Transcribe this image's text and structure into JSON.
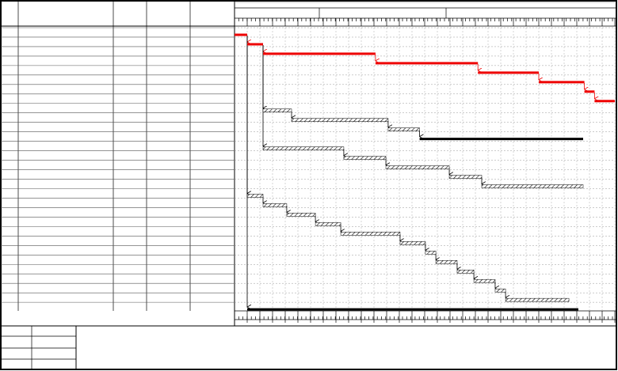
{
  "gantt": {
    "xlim": [
      0,
      150
    ],
    "tasks": [
      {
        "row": 0,
        "start": 0,
        "end": 5,
        "style": "critical"
      },
      {
        "row": 1,
        "start": 5,
        "end": 11.25,
        "style": "critical"
      },
      {
        "row": 2,
        "start": 11.25,
        "end": 55.6,
        "style": "critical"
      },
      {
        "row": 3,
        "start": 55.6,
        "end": 96,
        "style": "critical"
      },
      {
        "row": 4,
        "start": 96,
        "end": 120,
        "style": "critical"
      },
      {
        "row": 5,
        "start": 120,
        "end": 138,
        "style": "critical"
      },
      {
        "row": 6,
        "start": 138,
        "end": 142,
        "style": "critical"
      },
      {
        "row": 7,
        "start": 142,
        "end": 150,
        "style": "critical"
      },
      {
        "row": 8,
        "start": 11.25,
        "end": 22.5,
        "style": "normal"
      },
      {
        "row": 9,
        "start": 22.5,
        "end": 60.6,
        "style": "normal"
      },
      {
        "row": 10,
        "start": 60.6,
        "end": 73,
        "style": "normal"
      },
      {
        "row": 11,
        "start": 73,
        "end": 137.5,
        "style": "summary"
      },
      {
        "row": 12,
        "start": 11.25,
        "end": 43.1,
        "style": "normal"
      },
      {
        "row": 13,
        "start": 43.1,
        "end": 59.7,
        "style": "normal"
      },
      {
        "row": 14,
        "start": 59.7,
        "end": 84.7,
        "style": "normal"
      },
      {
        "row": 15,
        "start": 84.7,
        "end": 97.5,
        "style": "normal"
      },
      {
        "row": 16,
        "start": 97.5,
        "end": 137.5,
        "style": "normal"
      },
      {
        "row": 17,
        "start": 5,
        "end": 11.25,
        "style": "normal"
      },
      {
        "row": 18,
        "start": 11.25,
        "end": 20.6,
        "style": "normal"
      },
      {
        "row": 19,
        "start": 20.6,
        "end": 31.9,
        "style": "normal"
      },
      {
        "row": 20,
        "start": 31.9,
        "end": 41.9,
        "style": "normal"
      },
      {
        "row": 21,
        "start": 41.9,
        "end": 65.3,
        "style": "normal"
      },
      {
        "row": 22,
        "start": 65.3,
        "end": 75.3,
        "style": "normal"
      },
      {
        "row": 23,
        "start": 75.3,
        "end": 79.4,
        "style": "normal"
      },
      {
        "row": 24,
        "start": 79.4,
        "end": 87.8,
        "style": "normal"
      },
      {
        "row": 25,
        "start": 87.8,
        "end": 94.4,
        "style": "normal"
      },
      {
        "row": 26,
        "start": 94.4,
        "end": 102.8,
        "style": "normal"
      },
      {
        "row": 27,
        "start": 102.8,
        "end": 106.9,
        "style": "normal"
      },
      {
        "row": 28,
        "start": 106.9,
        "end": 131.9,
        "style": "normal"
      },
      {
        "row": 29,
        "start": 5,
        "end": 135.6,
        "style": "summary"
      }
    ]
  }
}
